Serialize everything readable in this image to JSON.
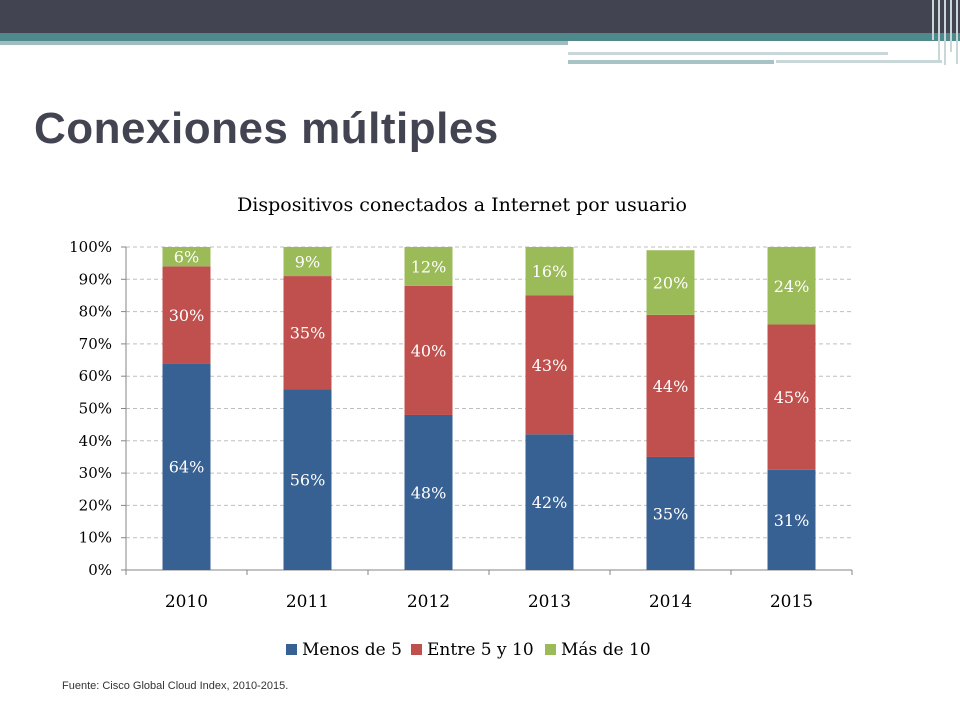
{
  "slide": {
    "title": "Conexiones múltiples",
    "source": "Fuente: Cisco Global Cloud Index, 2010-2015."
  },
  "colors": {
    "menos_de_5": "#386193",
    "entre_5_y_10": "#c0504d",
    "mas_de_10": "#9bbb59",
    "header_dark": "#434452",
    "header_teal": "#4e8a8c"
  },
  "chart_data": {
    "type": "bar",
    "stacked": true,
    "title": "Dispositivos conectados a Internet por usuario",
    "xlabel": "",
    "ylabel": "",
    "categories": [
      "2010",
      "2011",
      "2012",
      "2013",
      "2014",
      "2015"
    ],
    "series": [
      {
        "name": "Menos de 5",
        "values": [
          64,
          56,
          48,
          42,
          35,
          31
        ],
        "labels": [
          "64%",
          "56%",
          "48%",
          "42%",
          "35%",
          "31%"
        ]
      },
      {
        "name": "Entre 5 y 10",
        "values": [
          30,
          35,
          40,
          43,
          44,
          45
        ],
        "labels": [
          "30%",
          "35%",
          "40%",
          "43%",
          "44%",
          "45%"
        ]
      },
      {
        "name": "Más de 10",
        "values": [
          6,
          9,
          12,
          16,
          20,
          24
        ],
        "labels": [
          "6%",
          "9%",
          "12%",
          "16%",
          "20%",
          "24%"
        ]
      }
    ],
    "ylim": [
      0,
      100
    ],
    "yticks": [
      "0%",
      "10%",
      "20%",
      "30%",
      "40%",
      "50%",
      "60%",
      "70%",
      "80%",
      "90%",
      "100%"
    ],
    "grid": true,
    "legend": "bottom"
  }
}
